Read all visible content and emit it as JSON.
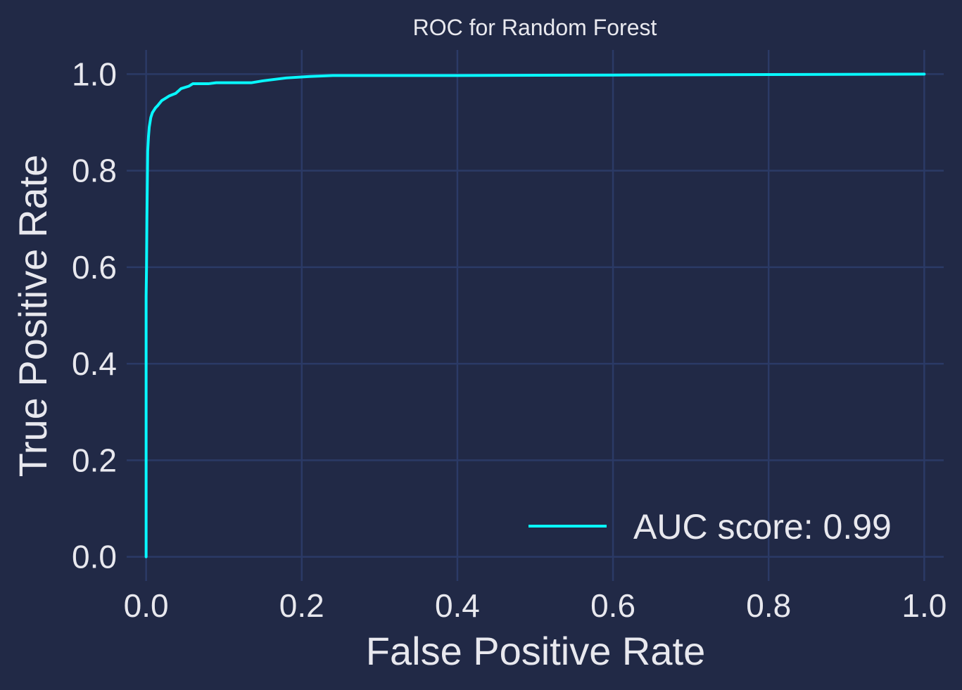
{
  "chart_data": {
    "type": "line",
    "title": "ROC for Random Forest",
    "xlabel": "False Positive Rate",
    "ylabel": "True Positive Rate",
    "xlim": [
      -0.025,
      1.025
    ],
    "ylim": [
      -0.05,
      1.05
    ],
    "xticks": [
      0.0,
      0.2,
      0.4,
      0.6,
      0.8,
      1.0
    ],
    "xtick_labels": [
      "0.0",
      "0.2",
      "0.4",
      "0.6",
      "0.8",
      "1.0"
    ],
    "yticks": [
      0.0,
      0.2,
      0.4,
      0.6,
      0.8,
      1.0
    ],
    "ytick_labels": [
      "0.0",
      "0.2",
      "0.4",
      "0.6",
      "0.8",
      "1.0"
    ],
    "grid": true,
    "legend_position": "lower-right",
    "background_color": "#212946",
    "grid_color": "#2b3a66",
    "text_color": "#e8e8ee",
    "series": [
      {
        "name": "AUC score: 0.99",
        "color": "#08f7fe",
        "x": [
          0.0,
          0.0,
          0.0,
          0.0005,
          0.001,
          0.0015,
          0.002,
          0.003,
          0.004,
          0.005,
          0.006,
          0.008,
          0.01,
          0.012,
          0.015,
          0.02,
          0.025,
          0.03,
          0.038,
          0.045,
          0.055,
          0.06,
          0.08,
          0.09,
          0.1,
          0.12,
          0.135,
          0.15,
          0.18,
          0.21,
          0.24,
          0.4,
          0.6,
          0.8,
          1.0
        ],
        "y": [
          0.0,
          0.3,
          0.54,
          0.6,
          0.7,
          0.77,
          0.84,
          0.87,
          0.89,
          0.9,
          0.91,
          0.92,
          0.925,
          0.93,
          0.935,
          0.945,
          0.95,
          0.955,
          0.96,
          0.97,
          0.975,
          0.98,
          0.98,
          0.982,
          0.982,
          0.982,
          0.982,
          0.986,
          0.992,
          0.995,
          0.997,
          0.997,
          0.998,
          0.999,
          1.0
        ]
      }
    ]
  }
}
